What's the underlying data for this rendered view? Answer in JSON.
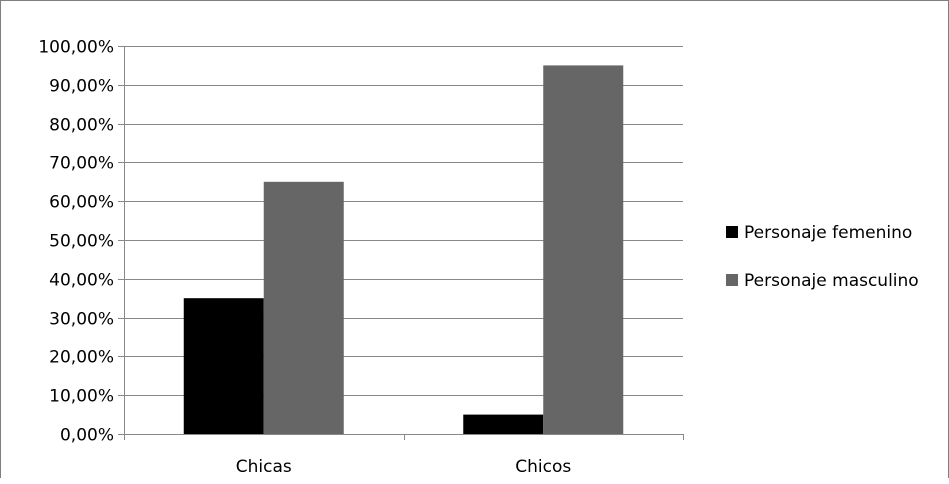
{
  "chart_data": {
    "type": "bar",
    "title": "",
    "xlabel": "",
    "ylabel": "",
    "categories": [
      "Chicas",
      "Chicos"
    ],
    "series": [
      {
        "name": "Personaje femenino",
        "color": "#000000",
        "values": [
          35,
          5
        ]
      },
      {
        "name": "Personaje masculino",
        "color": "#666666",
        "values": [
          65,
          95
        ]
      }
    ],
    "ylim": [
      0,
      100
    ],
    "yticks": [
      0,
      10,
      20,
      30,
      40,
      50,
      60,
      70,
      80,
      90,
      100
    ],
    "ytick_labels": [
      "0,00%",
      "10,00%",
      "20,00%",
      "30,00%",
      "40,00%",
      "50,00%",
      "60,00%",
      "70,00%",
      "80,00%",
      "90,00%",
      "100,00%"
    ],
    "grid": true,
    "legend_position": "right"
  }
}
